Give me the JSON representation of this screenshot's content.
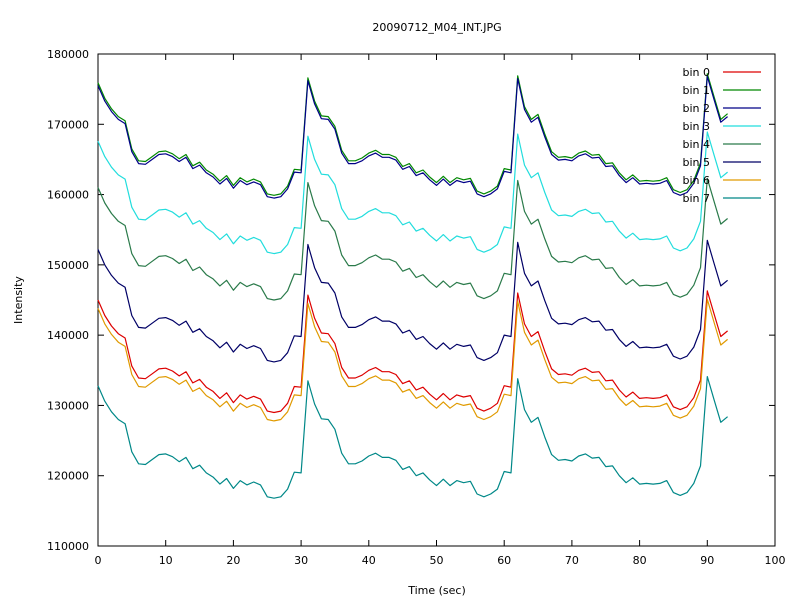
{
  "chart_data": {
    "type": "line",
    "title": "20090712_M04_INT.JPG",
    "xlabel": "Time (sec)",
    "ylabel": "Intensity",
    "xlim": [
      0,
      100
    ],
    "ylim": [
      110000,
      180000
    ],
    "x_ticks": [
      0,
      10,
      20,
      30,
      40,
      50,
      60,
      70,
      80,
      90,
      100
    ],
    "y_ticks": [
      110000,
      120000,
      130000,
      140000,
      150000,
      160000,
      170000,
      180000
    ],
    "grid": false,
    "legend_position": "top-right",
    "x": [
      0,
      1,
      2,
      3,
      4,
      5,
      6,
      7,
      8,
      9,
      10,
      11,
      12,
      13,
      14,
      15,
      16,
      17,
      18,
      19,
      20,
      21,
      22,
      23,
      24,
      25,
      26,
      27,
      28,
      29,
      30,
      31,
      32,
      33,
      34,
      35,
      36,
      37,
      38,
      39,
      40,
      41,
      42,
      43,
      44,
      45,
      46,
      47,
      48,
      49,
      50,
      51,
      52,
      53,
      54,
      55,
      56,
      57,
      58,
      59,
      60,
      61,
      62,
      63,
      64,
      65,
      66,
      67,
      68,
      69,
      70,
      71,
      72,
      73,
      74,
      75,
      76,
      77,
      78,
      79,
      80,
      81,
      82,
      83,
      84,
      85,
      86,
      87,
      88,
      89,
      90,
      91,
      92,
      93
    ],
    "series": [
      {
        "name": "bin 0",
        "color": "#dd0000",
        "offset": 0
      },
      {
        "name": "bin 1",
        "color": "#008800",
        "offset": 30900
      },
      {
        "name": "bin 2",
        "color": "#000088",
        "offset": 30500
      },
      {
        "name": "bin 3",
        "color": "#22dddd",
        "offset": 22600
      },
      {
        "name": "bin 4",
        "color": "#2a7a4a",
        "offset": 16000
      },
      {
        "name": "bin 5",
        "color": "#000066",
        "offset": 7200
      },
      {
        "name": "bin 6",
        "color": "#e09a00",
        "offset": -1200
      },
      {
        "name": "bin 7",
        "color": "#008888",
        "offset": -12200
      }
    ],
    "base_profile": [
      145000,
      142800,
      141300,
      140200,
      139600,
      135600,
      133900,
      133800,
      134500,
      135200,
      135300,
      134900,
      134200,
      134800,
      133200,
      133700,
      132600,
      132000,
      131000,
      131800,
      130400,
      131500,
      130900,
      131300,
      130900,
      129200,
      129000,
      129200,
      130300,
      132700,
      132600,
      145700,
      142400,
      140300,
      140200,
      138800,
      135400,
      133900,
      133900,
      134300,
      135000,
      135400,
      134800,
      134800,
      134400,
      133100,
      133500,
      132200,
      132600,
      131600,
      130800,
      131700,
      130800,
      131500,
      131200,
      131400,
      129600,
      129200,
      129600,
      130300,
      132800,
      132600,
      146000,
      141600,
      139800,
      140500,
      137700,
      135200,
      134400,
      134500,
      134300,
      135000,
      135300,
      134700,
      134800,
      133500,
      133600,
      132200,
      131200,
      131900,
      131000,
      131100,
      131000,
      131100,
      131500,
      129800,
      129400,
      129800,
      131100,
      133600,
      146300,
      143000,
      139800,
      140600
    ],
    "legend": [
      "bin 0",
      "bin 1",
      "bin 2",
      "bin 3",
      "bin 4",
      "bin 5",
      "bin 6",
      "bin 7"
    ]
  }
}
